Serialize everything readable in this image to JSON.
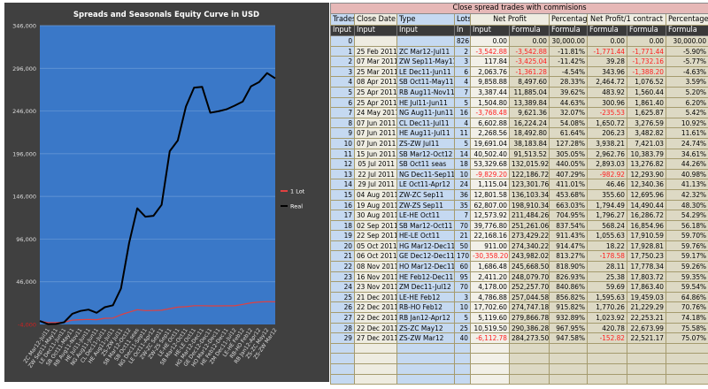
{
  "chart": {
    "title": "Spreads and Seasonals Equity Curve in USD",
    "legend": [
      "1 Lot",
      "Real"
    ]
  },
  "chart_data": {
    "type": "line",
    "title": "Spreads and Seasonals Equity Curve in USD",
    "ylim": [
      -4000,
      346000
    ],
    "yticks": [
      "-4,000",
      "46,000",
      "96,000",
      "146,000",
      "196,000",
      "246,000",
      "296,000",
      "346,000"
    ],
    "ytick_values": [
      -4000,
      46000,
      96000,
      146000,
      196000,
      246000,
      296000,
      346000
    ],
    "categories": [
      "",
      "ZC Mar12-Jul11",
      "ZW Sep11-May11",
      "LE Dec11-Jun11",
      "SB Oct11-May11",
      "RB Aug11-Nov11",
      "HE Jul11-Jun11",
      "NG Aug11-Jun11",
      "CL Dec11-Jul11",
      "HE Aug11-Jul11",
      "ZS-ZW Jul11",
      "SB Mar12-Oct12",
      "SB Oct11 seas",
      "NG Dec11-Sep11",
      "LE Oct11-Apr12",
      "ZW-ZC Sep11",
      "ZW-ZS Sep11",
      "LE-HE Oct11",
      "SB Mar12-Oct11",
      "HE-LE Oct11",
      "HG Mar12-Dec11",
      "GE Dec12-Dec11",
      "HO Mar12-Dec11",
      "HE Feb12-Dec11",
      "ZM Dec11-Jul12",
      "LE-HE Feb12",
      "RB-HO Feb12",
      "RB Jan12-Apr12",
      "ZS-ZC May12",
      "ZS-ZW Mar12"
    ],
    "series": [
      {
        "name": "1 Lot",
        "color": "#e04040",
        "values": [
          0,
          -1771.44,
          -1732.16,
          -1388.2,
          1076.52,
          1560.44,
          1861.4,
          1625.87,
          3276.59,
          3482.82,
          7421.03,
          10383.79,
          13276.82,
          12293.9,
          12340.36,
          12695.96,
          14490.44,
          16286.72,
          16854.96,
          17910.59,
          17928.81,
          17750.23,
          17778.34,
          17803.72,
          17863.4,
          19459.03,
          21229.29,
          22253.21,
          22673.99,
          22521.17
        ]
      },
      {
        "name": "Real",
        "color": "#000000",
        "values": [
          0,
          -3542.88,
          -3425.04,
          -1361.28,
          8497.6,
          11885.04,
          13389.84,
          9621.36,
          16224.24,
          18492.8,
          38183.84,
          91513.52,
          132015.92,
          122186.72,
          123301.76,
          136103.34,
          198910.34,
          211484.26,
          251261.06,
          273429.22,
          274340.22,
          243982.02,
          245668.5,
          248079.7,
          252257.7,
          257044.58,
          274747.18,
          279866.78,
          290386.28,
          284273.5
        ]
      }
    ]
  },
  "table": {
    "title": "Close spread trades with commisions",
    "headers": [
      "Trades",
      "Close Date",
      "Type",
      "Lots",
      "Net Profit",
      "Percentage",
      "Net Profit/1 contract",
      "Percentage"
    ],
    "subheaders": [
      "Input",
      "Input",
      "Input",
      "In",
      "Input",
      "Formula",
      "Formula",
      "Formula",
      "Formula",
      "Formula"
    ],
    "rows": [
      [
        "0",
        "",
        "",
        "826",
        "0.00",
        "0.00",
        "30,000.00",
        "0.00",
        "0.00",
        "30,000.00"
      ],
      [
        "1",
        "25 Feb 2011",
        "ZC Mar12-Jul11",
        "2",
        "-3,542.88",
        "-3,542.88",
        "-11.81%",
        "-1,771.44",
        "-1,771.44",
        "-5.90%"
      ],
      [
        "2",
        "07 Mar 2011",
        "ZW Sep11-May11",
        "3",
        "117.84",
        "-3,425.04",
        "-11.42%",
        "39.28",
        "-1,732.16",
        "-5.77%"
      ],
      [
        "3",
        "25 Mar 2011",
        "LE Dec11-Jun11",
        "6",
        "2,063.76",
        "-1,361.28",
        "-4.54%",
        "343.96",
        "-1,388.20",
        "-4.63%"
      ],
      [
        "4",
        "08 Apr 2011",
        "SB Oct11-May11",
        "4",
        "9,858.88",
        "8,497.60",
        "28.33%",
        "2,464.72",
        "1,076.52",
        "3.59%"
      ],
      [
        "5",
        "25 Apr 2011",
        "RB Aug11-Nov11",
        "7",
        "3,387.44",
        "11,885.04",
        "39.62%",
        "483.92",
        "1,560.44",
        "5.20%"
      ],
      [
        "6",
        "25 Apr 2011",
        "HE Jul11-Jun11",
        "5",
        "1,504.80",
        "13,389.84",
        "44.63%",
        "300.96",
        "1,861.40",
        "6.20%"
      ],
      [
        "7",
        "24 May 2011",
        "NG Aug11-Jun11",
        "16",
        "-3,768.48",
        "9,621.36",
        "32.07%",
        "-235.53",
        "1,625.87",
        "5.42%"
      ],
      [
        "8",
        "07 Jun 2011",
        "CL Dec11-Jul11",
        "4",
        "6,602.88",
        "16,224.24",
        "54.08%",
        "1,650.72",
        "3,276.59",
        "10.92%"
      ],
      [
        "9",
        "07 Jun 2011",
        "HE Aug11-Jul11",
        "11",
        "2,268.56",
        "18,492.80",
        "61.64%",
        "206.23",
        "3,482.82",
        "11.61%"
      ],
      [
        "10",
        "07 Jun 2011",
        "ZS-ZW Jul11",
        "5",
        "19,691.04",
        "38,183.84",
        "127.28%",
        "3,938.21",
        "7,421.03",
        "24.74%"
      ],
      [
        "11",
        "15 Jun 2011",
        "SB Mar12-Oct12",
        "14",
        "40,502.40",
        "91,513.52",
        "305.05%",
        "2,962.76",
        "10,383.79",
        "34.61%"
      ],
      [
        "12",
        "05 Jul 2011",
        "SB Oct11 seas",
        "18",
        "53,329.68",
        "132,015.92",
        "440.05%",
        "2,893.03",
        "13,276.82",
        "44.26%"
      ],
      [
        "13",
        "22 Jul 2011",
        "NG Dec11-Sep11",
        "10",
        "-9,829.20",
        "122,186.72",
        "407.29%",
        "-982.92",
        "12,293.90",
        "40.98%"
      ],
      [
        "14",
        "29 Jul 2011",
        "LE Oct11-Apr12",
        "24",
        "1,115.04",
        "123,301.76",
        "411.01%",
        "46.46",
        "12,340.36",
        "41.13%"
      ],
      [
        "15",
        "04 Aug 2011",
        "ZW-ZC Sep11",
        "36",
        "12,801.58",
        "136,103.34",
        "453.68%",
        "355.60",
        "12,695.96",
        "42.32%"
      ],
      [
        "16",
        "19 Aug 2011",
        "ZW-ZS Sep11",
        "35",
        "62,807.00",
        "198,910.34",
        "663.03%",
        "1,794.49",
        "14,490.44",
        "48.30%"
      ],
      [
        "17",
        "30 Aug 2011",
        "LE-HE Oct11",
        "7",
        "12,573.92",
        "211,484.26",
        "704.95%",
        "1,796.27",
        "16,286.72",
        "54.29%"
      ],
      [
        "18",
        "02 Sep 2011",
        "SB Mar12-Oct11",
        "70",
        "39,776.80",
        "251,261.06",
        "837.54%",
        "568.24",
        "16,854.96",
        "56.18%"
      ],
      [
        "19",
        "22 Sep 2011",
        "HE-LE Oct11",
        "21",
        "22,168.16",
        "273,429.22",
        "911.43%",
        "1,055.63",
        "17,910.59",
        "59.70%"
      ],
      [
        "20",
        "05 Oct 2011",
        "HG Mar12-Dec11",
        "50",
        "911.00",
        "274,340.22",
        "914.47%",
        "18.22",
        "17,928.81",
        "59.76%"
      ],
      [
        "21",
        "06 Oct 2011",
        "GE Dec12-Dec11",
        "170",
        "-30,358.20",
        "243,982.02",
        "813.27%",
        "-178.58",
        "17,750.23",
        "59.17%"
      ],
      [
        "22",
        "08 Nov 2011",
        "HO Mar12-Dec11",
        "60",
        "1,686.48",
        "245,668.50",
        "818.90%",
        "28.11",
        "17,778.34",
        "59.26%"
      ],
      [
        "23",
        "16 Nov 2011",
        "HE Feb12-Dec11",
        "95",
        "2,411.20",
        "248,079.70",
        "826.93%",
        "25.38",
        "17,803.72",
        "59.35%"
      ],
      [
        "24",
        "23 Nov 2011",
        "ZM Dec11-Jul12",
        "70",
        "4,178.00",
        "252,257.70",
        "840.86%",
        "59.69",
        "17,863.40",
        "59.54%"
      ],
      [
        "25",
        "21 Dec 2011",
        "LE-HE Feb12",
        "3",
        "4,786.88",
        "257,044.58",
        "856.82%",
        "1,595.63",
        "19,459.03",
        "64.86%"
      ],
      [
        "26",
        "22 Dec 2011",
        "RB-HO Feb12",
        "10",
        "17,702.60",
        "274,747.18",
        "915.82%",
        "1,770.26",
        "21,229.29",
        "70.76%"
      ],
      [
        "27",
        "22 Dec 2011",
        "RB Jan12-Apr12",
        "5",
        "5,119.60",
        "279,866.78",
        "932.89%",
        "1,023.92",
        "22,253.21",
        "74.18%"
      ],
      [
        "28",
        "22 Dec 2011",
        "ZS-ZC May12",
        "25",
        "10,519.50",
        "290,386.28",
        "967.95%",
        "420.78",
        "22,673.99",
        "75.58%"
      ],
      [
        "29",
        "27 Dec 2011",
        "ZS-ZW Mar12",
        "40",
        "-6,112.78",
        "284,273.50",
        "947.58%",
        "-152.82",
        "22,521.17",
        "75.07%"
      ]
    ],
    "empty_rows": 4
  }
}
